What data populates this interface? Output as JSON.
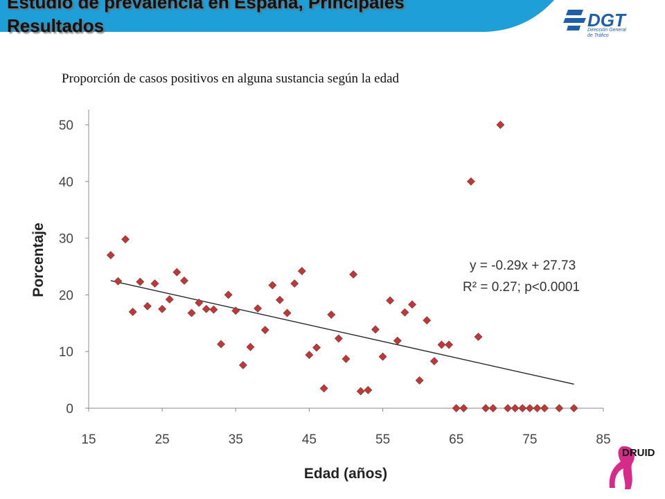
{
  "slide": {
    "title": "Estudio de prevalencia en España, Principales\nResultados",
    "subtitle": "Proporción de casos positivos en alguna sustancia según la edad"
  },
  "logos": {
    "dgt": {
      "text": "DGT",
      "subtext": "Dirección General\nde Tráfico"
    },
    "druid": {
      "text": "DRUID"
    }
  },
  "colors": {
    "banner": "#1e9fd8",
    "marker": "#b83a3a",
    "trendline": "#222222",
    "dgt_blue": "#1e5fa8",
    "druid_magenta": "#d62b88"
  },
  "chart_data": {
    "type": "scatter",
    "xlabel": "Edad (años)",
    "ylabel": "Porcentaje",
    "xlim": [
      15,
      85
    ],
    "ylim": [
      0,
      55
    ],
    "xticks": [
      15,
      25,
      35,
      45,
      55,
      65,
      75,
      85
    ],
    "yticks": [
      0,
      10,
      20,
      30,
      40,
      50
    ],
    "grid": false,
    "annotation": [
      "y = -0.29x + 27.73",
      "R² = 0.27; p<0.0001"
    ],
    "trendline": {
      "slope": -0.29,
      "intercept": 27.73,
      "x_range": [
        18,
        81
      ]
    },
    "x": [
      18,
      19,
      20,
      21,
      22,
      23,
      24,
      25,
      26,
      27,
      28,
      29,
      30,
      31,
      32,
      33,
      34,
      35,
      36,
      37,
      38,
      39,
      40,
      41,
      42,
      43,
      44,
      45,
      46,
      47,
      48,
      49,
      50,
      51,
      52,
      53,
      54,
      55,
      56,
      57,
      58,
      59,
      60,
      61,
      62,
      63,
      64,
      65,
      66,
      67,
      68,
      69,
      70,
      71,
      72,
      73,
      74,
      75,
      76,
      77,
      79,
      81
    ],
    "y": [
      27,
      22.4,
      29.8,
      17,
      22.3,
      18,
      22,
      17.5,
      19.2,
      24,
      22.5,
      16.8,
      18.6,
      17.5,
      17.4,
      11.3,
      20,
      17.2,
      7.6,
      10.8,
      17.6,
      13.8,
      21.7,
      19.1,
      16.8,
      22,
      24.2,
      9.4,
      10.7,
      3.5,
      16.5,
      12.3,
      8.7,
      23.6,
      3,
      3.2,
      13.9,
      9.1,
      19,
      11.9,
      16.9,
      18.3,
      4.9,
      15.5,
      8.3,
      11.2,
      11.2,
      0,
      0,
      40,
      12.6,
      0,
      0,
      50,
      0,
      0,
      0,
      0,
      0,
      0,
      0,
      0
    ]
  }
}
